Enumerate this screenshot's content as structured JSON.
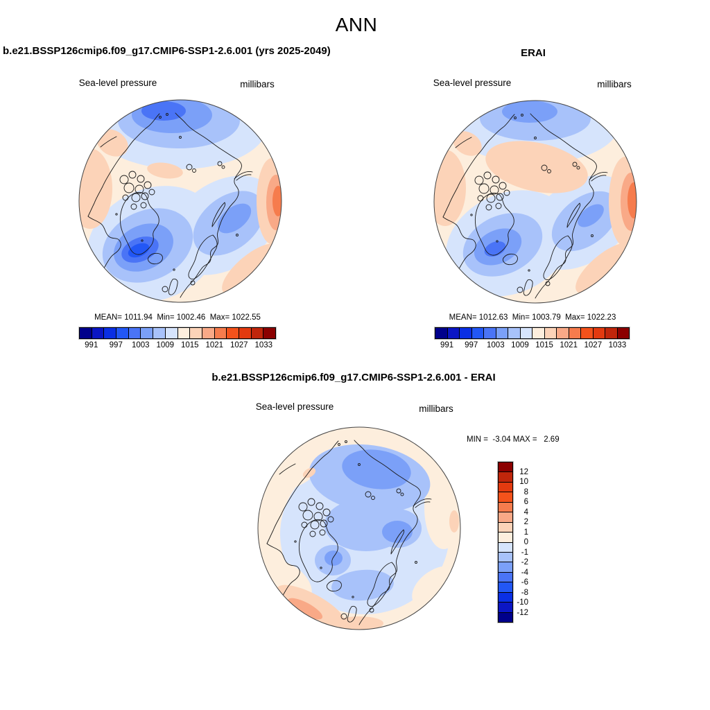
{
  "header": {
    "title": "ANN"
  },
  "panels": {
    "model": {
      "title": "b.e21.BSSP126cmip6.f09_g17.CMIP6-SSP1-2.6.001 (yrs 2025-2049)",
      "field_label": "Sea-level pressure",
      "units_label": "millibars",
      "stats_line": "MEAN= 1011.94  Min= 1002.46  Max= 1022.55"
    },
    "erai": {
      "title": "ERAI",
      "field_label": "Sea-level pressure",
      "units_label": "millibars",
      "stats_line": "MEAN= 1012.63  Min= 1003.79  Max= 1022.23"
    },
    "diff": {
      "title": "b.e21.BSSP126cmip6.f09_g17.CMIP6-SSP1-2.6.001 - ERAI",
      "field_label": "Sea-level pressure",
      "units_label": "millibars",
      "minmax_line": "MIN =  -3.04 MAX =   2.69"
    }
  },
  "colorbar_abs": {
    "tick_labels": [
      "991",
      "997",
      "1003",
      "1009",
      "1015",
      "1021",
      "1027",
      "1033"
    ],
    "colors": [
      "#00008b",
      "#0b16c4",
      "#0a2fe4",
      "#2257f5",
      "#4a74f6",
      "#7ba0f8",
      "#a8c2fa",
      "#d6e4fc",
      "#fdeedd",
      "#fcd3b8",
      "#f9a987",
      "#f67c4d",
      "#f4521b",
      "#e33a0f",
      "#c0260b",
      "#8b0000"
    ]
  },
  "colorbar_diff": {
    "tick_labels": [
      "12",
      "10",
      "8",
      "6",
      "4",
      "2",
      "1",
      "0",
      "-1",
      "-2",
      "-4",
      "-6",
      "-8",
      "-10",
      "-12"
    ],
    "colors": [
      "#8b0000",
      "#c0260b",
      "#e33a0f",
      "#f4521b",
      "#f67c4d",
      "#f9a987",
      "#fcd3b8",
      "#fdeedd",
      "#d6e4fc",
      "#a8c2fa",
      "#7ba0f8",
      "#4a74f6",
      "#2257f5",
      "#0a2fe4",
      "#0b16c4",
      "#00008b"
    ]
  },
  "chart_data": [
    {
      "type": "heatmap",
      "panel": "model",
      "title": "b.e21.BSSP126cmip6.f09_g17.CMIP6-SSP1-2.6.001 (yrs 2025-2049)",
      "variable": "Sea-level pressure",
      "units": "millibars",
      "season": "ANN",
      "projection": "north polar stereographic",
      "stats": {
        "mean": 1011.94,
        "min": 1002.46,
        "max": 1022.55
      },
      "colorbar_levels": [
        991,
        994,
        997,
        1000,
        1003,
        1006,
        1009,
        1012,
        1015,
        1018,
        1021,
        1024,
        1027,
        1030,
        1033
      ],
      "labeled_levels": [
        991,
        997,
        1003,
        1009,
        1015,
        1021,
        1027,
        1033
      ],
      "legend_position": "bottom"
    },
    {
      "type": "heatmap",
      "panel": "erai",
      "title": "ERAI",
      "variable": "Sea-level pressure",
      "units": "millibars",
      "season": "ANN",
      "projection": "north polar stereographic",
      "stats": {
        "mean": 1012.63,
        "min": 1003.79,
        "max": 1022.23
      },
      "colorbar_levels": [
        991,
        994,
        997,
        1000,
        1003,
        1006,
        1009,
        1012,
        1015,
        1018,
        1021,
        1024,
        1027,
        1030,
        1033
      ],
      "labeled_levels": [
        991,
        997,
        1003,
        1009,
        1015,
        1021,
        1027,
        1033
      ],
      "legend_position": "bottom"
    },
    {
      "type": "heatmap",
      "panel": "difference",
      "title": "b.e21.BSSP126cmip6.f09_g17.CMIP6-SSP1-2.6.001 - ERAI",
      "variable": "Sea-level pressure",
      "units": "millibars",
      "season": "ANN",
      "projection": "north polar stereographic",
      "stats": {
        "min": -3.04,
        "max": 2.69
      },
      "colorbar_levels": [
        -12,
        -10,
        -8,
        -6,
        -4,
        -2,
        -1,
        0,
        1,
        2,
        4,
        6,
        8,
        10,
        12
      ],
      "legend_position": "right"
    }
  ]
}
